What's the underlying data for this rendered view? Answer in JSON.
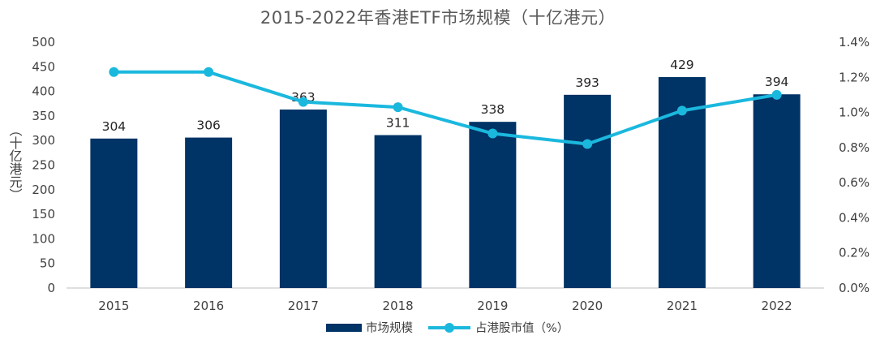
{
  "chart_data": {
    "type": "bar+line",
    "title": "2015-2022年香港ETF市场规模（十亿港元）",
    "categories": [
      "2015",
      "2016",
      "2017",
      "2018",
      "2019",
      "2020",
      "2021",
      "2022"
    ],
    "series": [
      {
        "name": "市场规模",
        "type": "bar",
        "axis": "left",
        "values": [
          304,
          306,
          363,
          311,
          338,
          393,
          429,
          394
        ],
        "color": "#003366"
      },
      {
        "name": "占港股市值（%）",
        "type": "line",
        "axis": "right",
        "values": [
          1.23,
          1.23,
          1.06,
          1.03,
          0.88,
          0.82,
          1.01,
          1.1
        ],
        "color": "#1BB8DE"
      }
    ],
    "ylabel": "（十亿港元）",
    "ylim": [
      0,
      500
    ],
    "y_ticks": [
      0,
      50,
      100,
      150,
      200,
      250,
      300,
      350,
      400,
      450,
      500
    ],
    "y2lim": [
      0,
      1.4
    ],
    "y2_ticks": [
      "0.0%",
      "0.2%",
      "0.4%",
      "0.6%",
      "0.8%",
      "1.0%",
      "1.2%",
      "1.4%"
    ],
    "data_labels": [
      "304",
      "306",
      "363",
      "311",
      "338",
      "393",
      "429",
      "394"
    ],
    "grid": false,
    "legend_position": "bottom"
  }
}
